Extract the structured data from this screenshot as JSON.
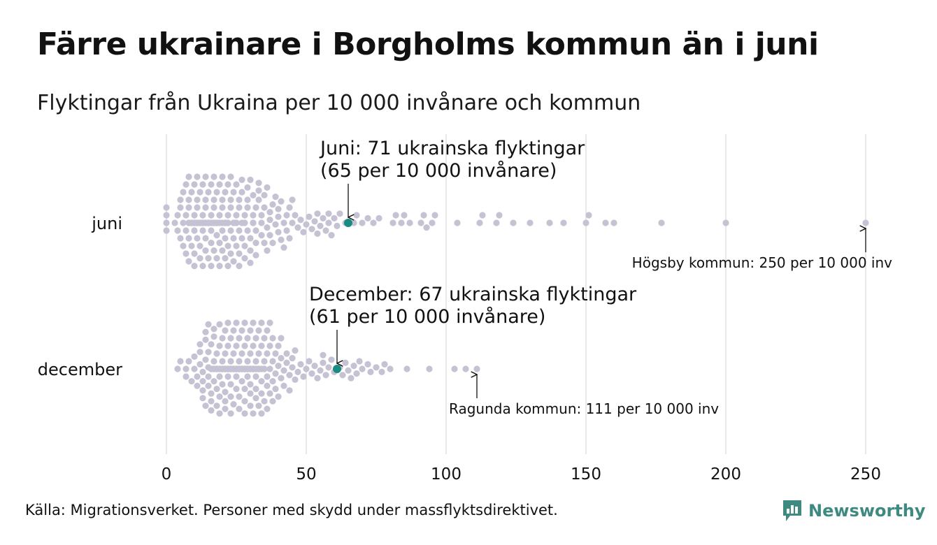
{
  "title": "Färre ukrainare i Borgholms kommun än i juni",
  "subtitle": "Flyktingar från Ukraina per 10 000 invånare och kommun",
  "source": "Källa: Migrationsverket. Personer med skydd under massflyktsdirektivet.",
  "brand": "Newsworthy",
  "colors": {
    "dot": "#c5c3d3",
    "highlight": "#1a8b80",
    "grid": "#d2d2d2",
    "brand": "#3f8a80"
  },
  "chart_data": {
    "type": "scatter",
    "subtype": "beeswarm",
    "xlim": [
      0,
      250
    ],
    "xticks": [
      "0",
      "50",
      "100",
      "150",
      "200",
      "250"
    ],
    "xtick_values": [
      0,
      50,
      100,
      150,
      200,
      250
    ],
    "grid": true,
    "categories": [
      "juni",
      "december"
    ],
    "series": [
      {
        "name": "juni",
        "highlight": {
          "value": 65,
          "label_line1": "Juni: 71 ukrainska flyktingar",
          "label_line2": "(65 per 10 000 invånare)"
        },
        "max_annotation": {
          "value": 250,
          "label": "Högsby kommun: 250 per 10 000 inv"
        },
        "values": [
          0,
          0,
          0,
          0,
          3,
          4,
          4,
          5,
          5,
          5,
          6,
          6,
          6,
          7,
          7,
          7,
          7,
          8,
          8,
          8,
          8,
          8,
          8,
          8,
          8,
          9,
          9,
          9,
          9,
          10,
          10,
          10,
          10,
          10,
          10,
          10,
          11,
          11,
          11,
          11,
          11,
          11,
          12,
          12,
          12,
          12,
          12,
          12,
          12,
          13,
          13,
          13,
          13,
          13,
          13,
          13,
          14,
          14,
          14,
          14,
          14,
          14,
          14,
          15,
          15,
          15,
          15,
          15,
          15,
          15,
          16,
          16,
          16,
          16,
          16,
          16,
          17,
          17,
          17,
          17,
          17,
          17,
          17,
          18,
          18,
          18,
          18,
          18,
          18,
          19,
          19,
          19,
          19,
          19,
          20,
          20,
          20,
          20,
          20,
          20,
          21,
          21,
          21,
          21,
          21,
          21,
          22,
          22,
          22,
          22,
          22,
          22,
          23,
          23,
          23,
          23,
          23,
          24,
          24,
          24,
          24,
          24,
          25,
          25,
          25,
          25,
          25,
          26,
          26,
          26,
          26,
          26,
          27,
          27,
          27,
          27,
          28,
          28,
          28,
          28,
          29,
          29,
          29,
          29,
          30,
          30,
          30,
          30,
          31,
          31,
          31,
          31,
          32,
          32,
          32,
          32,
          33,
          33,
          33,
          34,
          34,
          34,
          35,
          35,
          35,
          36,
          36,
          36,
          37,
          37,
          37,
          38,
          38,
          39,
          39,
          40,
          40,
          40,
          41,
          41,
          42,
          42,
          43,
          43,
          44,
          44,
          45,
          45,
          46,
          47,
          48,
          49,
          50,
          51,
          52,
          53,
          54,
          54,
          55,
          56,
          57,
          58,
          58,
          59,
          60,
          61,
          62,
          64,
          67,
          68,
          70,
          72,
          74,
          76,
          81,
          82,
          84,
          85,
          87,
          91,
          92,
          93,
          95,
          96,
          104,
          112,
          113,
          118,
          119,
          124,
          130,
          137,
          142,
          150,
          151,
          157,
          160,
          177,
          200,
          250
        ]
      },
      {
        "name": "december",
        "highlight": {
          "value": 61,
          "label_line1": "December: 67 ukrainska flyktingar",
          "label_line2": "(61 per 10 000 invånare)"
        },
        "max_annotation": {
          "value": 111,
          "label": "Ragunda kommun: 111 per 10 000 inv"
        },
        "values": [
          4,
          5,
          7,
          7,
          8,
          9,
          10,
          10,
          11,
          11,
          12,
          12,
          12,
          13,
          13,
          13,
          13,
          14,
          14,
          14,
          14,
          15,
          15,
          15,
          15,
          15,
          16,
          16,
          16,
          16,
          16,
          16,
          17,
          17,
          17,
          17,
          17,
          17,
          17,
          18,
          18,
          18,
          18,
          18,
          18,
          18,
          19,
          19,
          19,
          19,
          19,
          19,
          19,
          20,
          20,
          20,
          20,
          20,
          20,
          20,
          20,
          21,
          21,
          21,
          21,
          21,
          21,
          21,
          21,
          21,
          22,
          22,
          22,
          22,
          22,
          22,
          22,
          22,
          22,
          23,
          23,
          23,
          23,
          23,
          23,
          23,
          23,
          23,
          23,
          24,
          24,
          24,
          24,
          24,
          24,
          24,
          24,
          24,
          25,
          25,
          25,
          25,
          25,
          25,
          25,
          25,
          25,
          25,
          26,
          26,
          26,
          26,
          26,
          26,
          26,
          26,
          26,
          27,
          27,
          27,
          27,
          27,
          27,
          27,
          27,
          27,
          27,
          28,
          28,
          28,
          28,
          28,
          28,
          28,
          28,
          28,
          28,
          28,
          29,
          29,
          29,
          29,
          29,
          29,
          29,
          29,
          29,
          30,
          30,
          30,
          30,
          30,
          30,
          30,
          30,
          31,
          31,
          31,
          31,
          31,
          31,
          31,
          31,
          32,
          32,
          32,
          32,
          32,
          32,
          32,
          33,
          33,
          33,
          33,
          33,
          33,
          33,
          34,
          34,
          34,
          34,
          34,
          34,
          35,
          35,
          35,
          35,
          35,
          36,
          36,
          36,
          36,
          36,
          37,
          37,
          37,
          37,
          38,
          38,
          38,
          38,
          39,
          39,
          39,
          40,
          40,
          40,
          41,
          41,
          41,
          42,
          42,
          43,
          43,
          44,
          44,
          45,
          45,
          46,
          46,
          47,
          48,
          49,
          50,
          51,
          52,
          53,
          54,
          55,
          56,
          56,
          57,
          58,
          59,
          60,
          62,
          63,
          64,
          65,
          66,
          67,
          68,
          69,
          70,
          72,
          73,
          75,
          77,
          78,
          80,
          86,
          94,
          103,
          107,
          111
        ]
      }
    ]
  }
}
